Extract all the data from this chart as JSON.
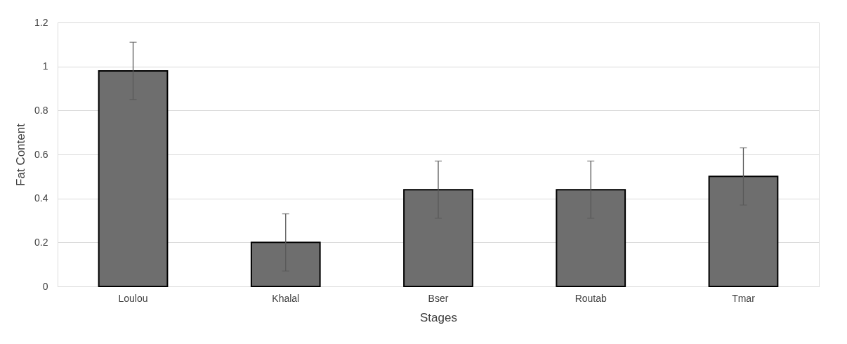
{
  "chart_data": {
    "type": "bar",
    "xlabel": "Stages",
    "ylabel": "Fat Content",
    "categories": [
      "Loulou",
      "Khalal",
      "Bser",
      "Routab",
      "Tmar"
    ],
    "values": [
      0.98,
      0.2,
      0.44,
      0.44,
      0.5
    ],
    "errors": [
      0.13,
      0.13,
      0.13,
      0.13,
      0.13
    ],
    "color": "#6e6e6e",
    "ylim": [
      0,
      1.2
    ],
    "yticks": [
      0,
      0.2,
      0.4,
      0.6,
      0.8,
      1,
      1.2
    ],
    "grid": "y"
  }
}
